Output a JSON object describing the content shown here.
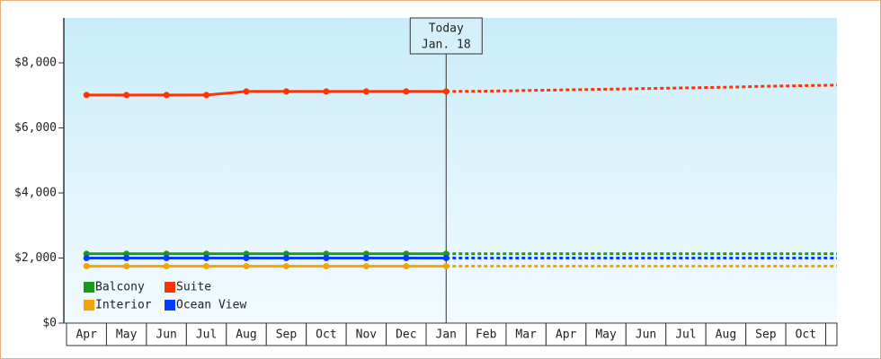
{
  "chart_data": {
    "type": "line",
    "categories": [
      "Apr",
      "May",
      "Jun",
      "Jul",
      "Aug",
      "Sep",
      "Oct",
      "Nov",
      "Dec",
      "Jan",
      "Feb",
      "Mar",
      "Apr",
      "May",
      "Jun",
      "Jul",
      "Aug",
      "Sep",
      "Oct",
      null
    ],
    "ylim": [
      0,
      9380
    ],
    "yticks": [
      {
        "value": 0,
        "label": "$0"
      },
      {
        "value": 2000,
        "label": "$2,000"
      },
      {
        "value": 4000,
        "label": "$4,000"
      },
      {
        "value": 6000,
        "label": "$6,000"
      },
      {
        "value": 8000,
        "label": "$8,000"
      }
    ],
    "annotation": {
      "title": "Today",
      "label": "Jan. 18"
    },
    "series": [
      {
        "name": "Balcony",
        "color": "#1a9a1a",
        "values": [
          2130,
          2130,
          2130,
          2130,
          2130,
          2130,
          2130,
          2130,
          2130,
          2130,
          null,
          null,
          null,
          null,
          null,
          null,
          null,
          null,
          null,
          null
        ],
        "forecast": [
          null,
          null,
          null,
          null,
          null,
          null,
          null,
          null,
          null,
          2130,
          2130,
          2130,
          2130,
          2130,
          2130,
          2130,
          2130,
          2130,
          2130,
          2130
        ]
      },
      {
        "name": "Suite",
        "color": "#ff3300",
        "values": [
          7010,
          7010,
          7010,
          7010,
          7120,
          7120,
          7120,
          7120,
          7120,
          7120,
          null,
          null,
          null,
          null,
          null,
          null,
          null,
          null,
          null,
          null
        ],
        "forecast": [
          null,
          null,
          null,
          null,
          null,
          null,
          null,
          null,
          null,
          7120,
          7130,
          7150,
          7170,
          7190,
          7210,
          7230,
          7250,
          7280,
          7300,
          7320
        ]
      },
      {
        "name": "Interior",
        "color": "#f5a300",
        "values": [
          1750,
          1750,
          1750,
          1750,
          1750,
          1750,
          1750,
          1750,
          1750,
          1750,
          null,
          null,
          null,
          null,
          null,
          null,
          null,
          null,
          null,
          null
        ],
        "forecast": [
          null,
          null,
          null,
          null,
          null,
          null,
          null,
          null,
          null,
          1750,
          1750,
          1750,
          1750,
          1750,
          1750,
          1750,
          1750,
          1750,
          1750,
          1750
        ]
      },
      {
        "name": "Ocean View",
        "color": "#0a3cff",
        "values": [
          2000,
          2000,
          2000,
          2000,
          2000,
          2000,
          2000,
          2000,
          2000,
          2000,
          null,
          null,
          null,
          null,
          null,
          null,
          null,
          null,
          null,
          null
        ],
        "forecast": [
          null,
          null,
          null,
          null,
          null,
          null,
          null,
          null,
          null,
          2000,
          2000,
          2000,
          2000,
          2000,
          2000,
          2000,
          2000,
          2000,
          2000,
          2000
        ]
      }
    ]
  }
}
